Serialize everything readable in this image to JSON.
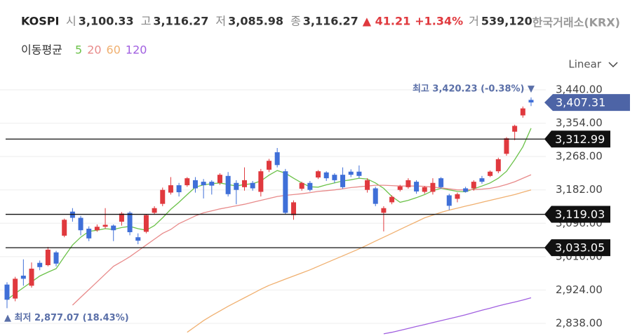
{
  "chart_data": {
    "type": "candlestick",
    "title": "KOSPI",
    "source": "한국거래소(KRX)",
    "header": [
      {
        "label": "시",
        "value": "3,100.33"
      },
      {
        "label": "고",
        "value": "3,116.27"
      },
      {
        "label": "저",
        "value": "3,085.98"
      },
      {
        "label": "종",
        "value": "3,116.27"
      }
    ],
    "change": "▲ 41.21",
    "change_pct": "+1.34%",
    "volume_label": "거",
    "volume": "539,120",
    "ma_title": "이동평균",
    "scale_mode": "Linear",
    "up_color": "#e0393e",
    "down_color": "#3f6fd8",
    "open": [
      2938,
      2902,
      2961,
      2935,
      2994,
      2988,
      3021,
      3064,
      3126,
      3110,
      3082,
      3078,
      3087,
      3090,
      3100,
      3123,
      3060,
      3074,
      3123,
      3146,
      3175,
      3194,
      3194,
      3207,
      3203,
      3203,
      3200,
      3218,
      3200,
      3189,
      3200,
      3177,
      3234,
      3279,
      3230,
      3117,
      3185,
      3200,
      3214,
      3227,
      3221,
      3221,
      3229,
      3229,
      3182,
      3186,
      3123,
      3150,
      3182,
      3189,
      3203,
      3177,
      3177,
      3212,
      3168,
      3159,
      3186,
      3186,
      3212,
      3218,
      3230,
      3275,
      3332,
      3374,
      3414
    ],
    "close": [
      2899,
      2953,
      2953,
      2979,
      2983,
      3028,
      2992,
      3105,
      3110,
      3078,
      3057,
      3087,
      3092,
      3078,
      3121,
      3073,
      3051,
      3117,
      3135,
      3182,
      3194,
      3176,
      3212,
      3186,
      3194,
      3193,
      3221,
      3171,
      3182,
      3207,
      3186,
      3230,
      3257,
      3246,
      3123,
      3150,
      3200,
      3182,
      3230,
      3212,
      3207,
      3189,
      3221,
      3218,
      3207,
      3146,
      3135,
      3164,
      3191,
      3207,
      3178,
      3189,
      3200,
      3189,
      3141,
      3171,
      3177,
      3203,
      3203,
      3229,
      3261,
      3315,
      3347,
      3392,
      3407.31
    ],
    "high": [
      2944,
      2958,
      3003,
      2995,
      3000,
      3035,
      3025,
      3108,
      3135,
      3115,
      3088,
      3093,
      3135,
      3093,
      3125,
      3127,
      3070,
      3120,
      3140,
      3188,
      3215,
      3200,
      3215,
      3215,
      3210,
      3207,
      3225,
      3228,
      3207,
      3240,
      3205,
      3236,
      3262,
      3290,
      3236,
      3155,
      3203,
      3205,
      3233,
      3230,
      3225,
      3240,
      3235,
      3245,
      3212,
      3190,
      3140,
      3168,
      3195,
      3212,
      3207,
      3192,
      3212,
      3215,
      3172,
      3175,
      3190,
      3207,
      3218,
      3232,
      3265,
      3318,
      3350,
      3397,
      3420.23
    ],
    "low": [
      2877,
      2895,
      2935,
      2930,
      2975,
      2985,
      2985,
      3060,
      3100,
      3065,
      3050,
      3074,
      3082,
      3050,
      3090,
      3065,
      3042,
      3070,
      3118,
      3140,
      3170,
      3165,
      3190,
      3175,
      3160,
      3170,
      3195,
      3165,
      3145,
      3180,
      3180,
      3165,
      3228,
      3240,
      3120,
      3105,
      3180,
      3178,
      3210,
      3205,
      3200,
      3185,
      3215,
      3212,
      3175,
      3140,
      3075,
      3145,
      3178,
      3185,
      3172,
      3172,
      3170,
      3185,
      3130,
      3150,
      3175,
      3180,
      3198,
      3215,
      3225,
      3270,
      3310,
      3368,
      3398
    ],
    "series": [
      {
        "name": "5",
        "color": "#6cc24a",
        "values": [
          2899,
          2915,
          2930,
          2945,
          2960,
          2970,
          2979,
          3010,
          3040,
          3060,
          3075,
          3078,
          3082,
          3080,
          3085,
          3088,
          3082,
          3078,
          3090,
          3110,
          3132,
          3150,
          3170,
          3189,
          3195,
          3198,
          3200,
          3196,
          3192,
          3196,
          3198,
          3205,
          3220,
          3232,
          3225,
          3212,
          3200,
          3190,
          3189,
          3195,
          3200,
          3205,
          3208,
          3212,
          3210,
          3200,
          3186,
          3165,
          3150,
          3155,
          3162,
          3170,
          3180,
          3186,
          3182,
          3178,
          3177,
          3185,
          3192,
          3200,
          3212,
          3230,
          3260,
          3293,
          3341
        ]
      },
      {
        "name": "20",
        "color": "#e88a8a",
        "values": [
          null,
          null,
          null,
          null,
          null,
          null,
          null,
          null,
          2885,
          2905,
          2925,
          2945,
          2965,
          2985,
          2997,
          3010,
          3025,
          3040,
          3055,
          3070,
          3080,
          3095,
          3105,
          3115,
          3123,
          3128,
          3133,
          3137,
          3141,
          3145,
          3150,
          3155,
          3160,
          3165,
          3168,
          3170,
          3172,
          3175,
          3178,
          3180,
          3182,
          3185,
          3188,
          3190,
          3192,
          3194,
          3194,
          3193,
          3192,
          3192,
          3192,
          3191,
          3189,
          3187,
          3185,
          3182,
          3182,
          3183,
          3184,
          3186,
          3190,
          3196,
          3203,
          3212,
          3221
        ]
      },
      {
        "name": "60",
        "color": "#f0b070",
        "values": [
          null,
          null,
          null,
          null,
          null,
          null,
          null,
          null,
          null,
          null,
          null,
          null,
          null,
          null,
          null,
          null,
          null,
          null,
          null,
          null,
          null,
          null,
          2815,
          2830,
          2845,
          2858,
          2870,
          2882,
          2893,
          2904,
          2915,
          2926,
          2936,
          2944,
          2952,
          2960,
          2968,
          2976,
          2985,
          2994,
          3003,
          3012,
          3021,
          3030,
          3040,
          3050,
          3060,
          3070,
          3080,
          3090,
          3100,
          3110,
          3117,
          3124,
          3130,
          3135,
          3140,
          3145,
          3150,
          3155,
          3160,
          3165,
          3170,
          3176,
          3182
        ]
      },
      {
        "name": "120",
        "color": "#a160e0",
        "values": [
          null,
          null,
          null,
          null,
          null,
          null,
          null,
          null,
          null,
          null,
          null,
          null,
          null,
          null,
          null,
          null,
          null,
          null,
          null,
          null,
          null,
          null,
          null,
          null,
          null,
          null,
          null,
          null,
          null,
          null,
          null,
          null,
          null,
          null,
          null,
          null,
          null,
          null,
          null,
          null,
          null,
          null,
          null,
          null,
          null,
          null,
          2811,
          2815,
          2820,
          2825,
          2830,
          2835,
          2840,
          2845,
          2850,
          2855,
          2860,
          2866,
          2872,
          2877,
          2883,
          2888,
          2893,
          2898,
          2904
        ]
      }
    ],
    "ylim": [
      2838,
      3440
    ],
    "yticks": [
      {
        "value": 3440,
        "label": "3,440.00"
      },
      {
        "value": 3354,
        "label": "3,354.00"
      },
      {
        "value": 3268,
        "label": "3,268.00"
      },
      {
        "value": 3182,
        "label": "3,182.00"
      },
      {
        "value": 3096,
        "label": "3,096.00"
      },
      {
        "value": 3010,
        "label": "3,010.00"
      },
      {
        "value": 2924,
        "label": "2,924.00"
      },
      {
        "value": 2838,
        "label": "2,838.00"
      }
    ],
    "grid": true,
    "price_lines": [
      {
        "value": 3312.99,
        "label": "3,312.99"
      },
      {
        "value": 3119.03,
        "label": "3,119.03"
      },
      {
        "value": 3033.05,
        "label": "3,033.05"
      }
    ],
    "last_price": {
      "value": 3407.31,
      "label": "3,407.31"
    },
    "high_note": "최고 3,420.23 (-0.38%) ▼",
    "low_note": "▲ 최저 2,877.07 (18.43%)"
  }
}
